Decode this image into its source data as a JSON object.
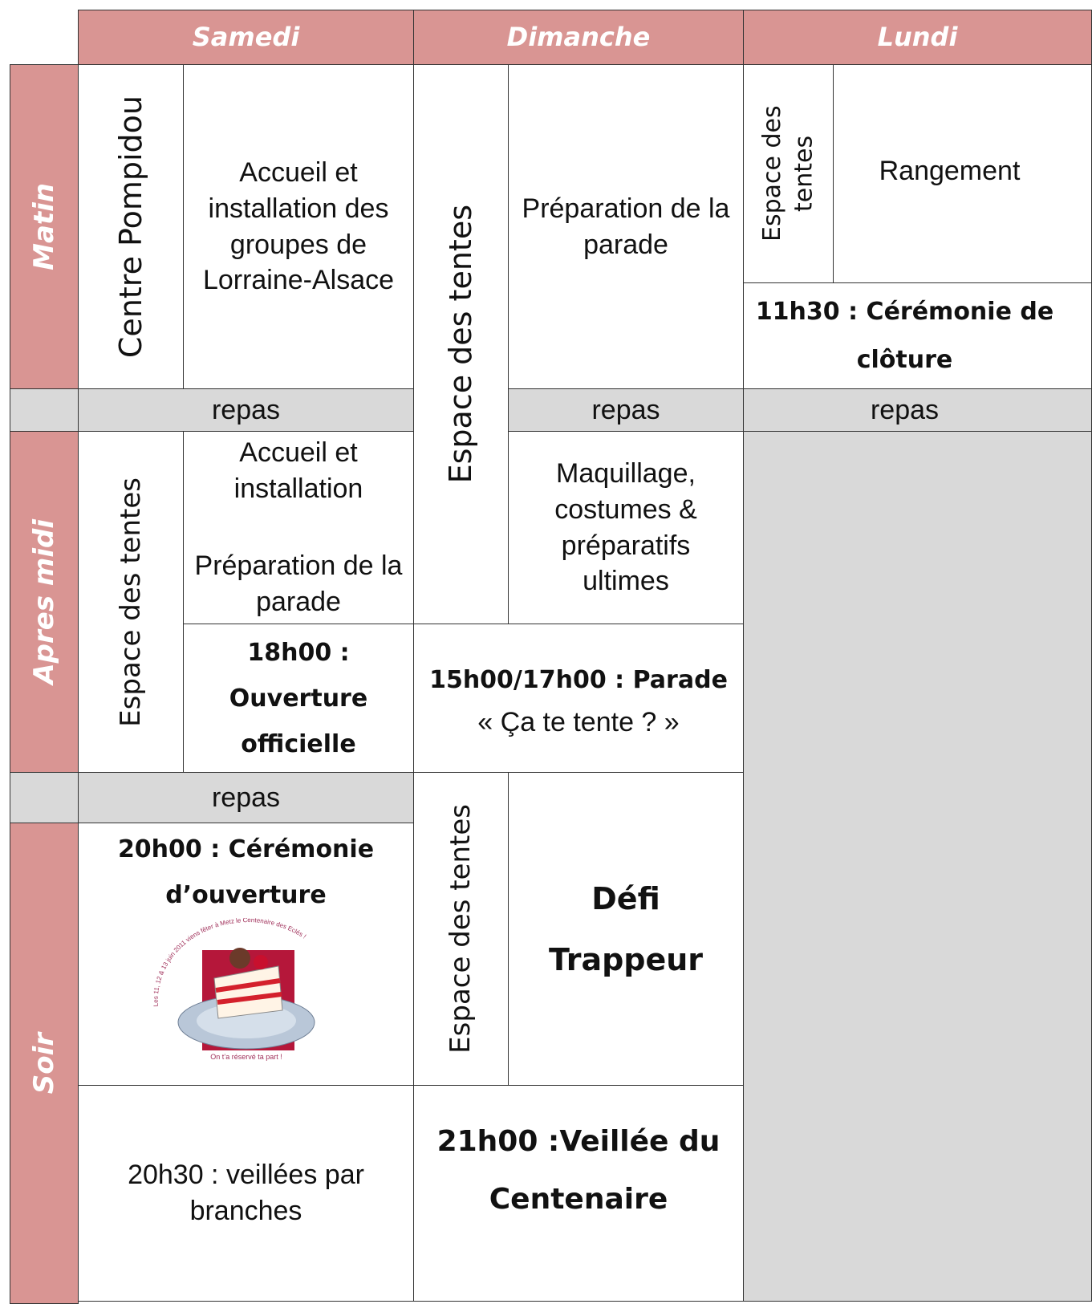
{
  "header": {
    "days": [
      "Samedi",
      "Dimanche",
      "Lundi"
    ]
  },
  "periods": [
    "Matin",
    "Apres midi",
    "Soir"
  ],
  "samedi": {
    "matin_lieu": "Centre Pompidou",
    "matin": "Accueil et installation des groupes de Lorraine-Alsace",
    "repas_midi": "repas",
    "aprem_lieu": "Espace des tentes",
    "aprem_1": "Accueil et installation",
    "aprem_2": "Préparation de la parade",
    "aprem_3": "18h00 : Ouverture officielle",
    "repas_soir": "repas",
    "soir_1": "20h00 : Cérémonie d’ouverture",
    "logo_top": "Les 11, 12 & 13 juin 2011 viens fêter à Metz le Centenaire des Eclés !",
    "logo_bottom": "On t’a réservé ta part !",
    "soir_2": "20h30 : veillées par branches"
  },
  "dimanche": {
    "lieu_1": "Espace des tentes",
    "matin": "Préparation de la parade",
    "repas_midi": "repas",
    "aprem": "Maquillage, costumes & préparatifs ultimes",
    "parade": "15h00/17h00 : Parade",
    "parade_sub": "« Ça te tente ? »",
    "lieu_2": "Espace des tentes",
    "soir_1": "Défi Trappeur",
    "soir_2": "21h00 :Veillée du Centenaire"
  },
  "lundi": {
    "lieu": "Espace des tentes",
    "matin": "Rangement",
    "cloture": "11h30 : Cérémonie de clôture",
    "repas_midi": "repas"
  }
}
